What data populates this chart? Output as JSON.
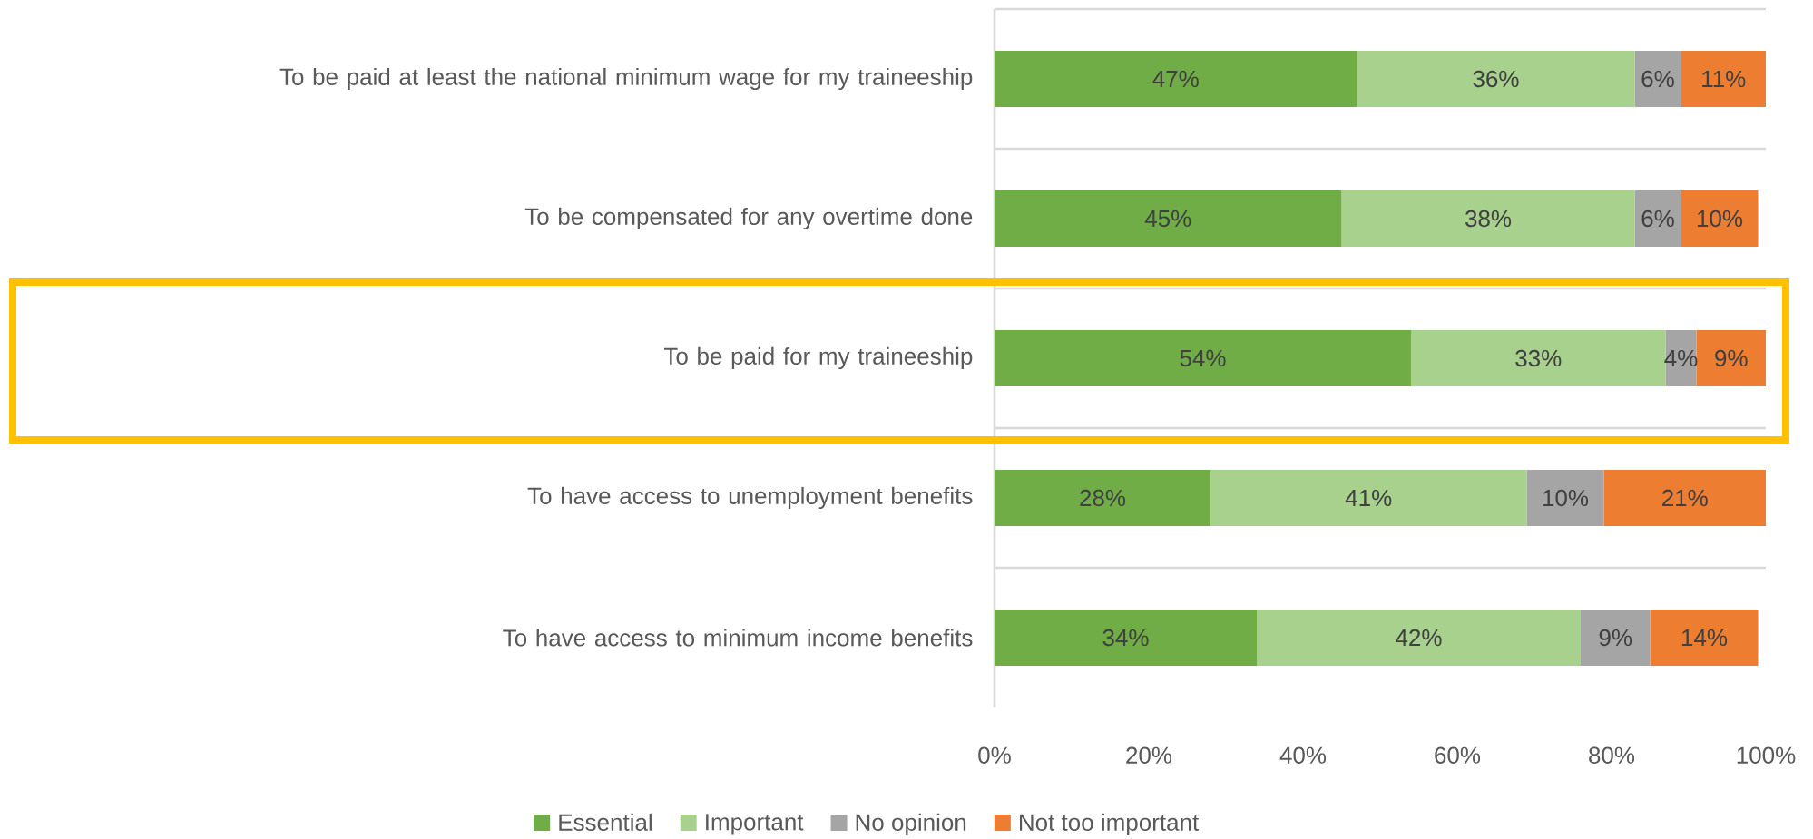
{
  "chart_data": {
    "type": "bar",
    "orientation": "horizontal",
    "stacked": true,
    "grid": "y",
    "legend": "bottom",
    "categories": [
      "To be paid at least the national minimum wage for my traineeship",
      "To be compensated for any overtime done",
      "To be paid for my traineeship",
      "To have access to unemployment benefits",
      "To have access to minimum income benefits"
    ],
    "series": [
      {
        "name": "Essential",
        "color": "#70ad47",
        "values": [
          47,
          45,
          54,
          28,
          34
        ],
        "value_labels": [
          "47%",
          "45%",
          "54%",
          "28%",
          "34%"
        ]
      },
      {
        "name": "Important",
        "color": "#a9d18e",
        "values": [
          36,
          38,
          33,
          41,
          42
        ],
        "value_labels": [
          "36%",
          "38%",
          "33%",
          "41%",
          "42%"
        ]
      },
      {
        "name": "No opinion",
        "color": "#a5a5a5",
        "values": [
          6,
          6,
          4,
          10,
          9
        ],
        "value_labels": [
          "6%",
          "6%",
          "4%",
          "10%",
          "9%"
        ]
      },
      {
        "name": "Not too important",
        "color": "#ed7d31",
        "values": [
          11,
          10,
          9,
          21,
          14
        ],
        "value_labels": [
          "11%",
          "10%",
          "9%",
          "21%",
          "14%"
        ]
      }
    ],
    "xlim": [
      0,
      100
    ],
    "xticks": [
      {
        "value": 0,
        "label": "0%"
      },
      {
        "value": 20,
        "label": "20%"
      },
      {
        "value": 40,
        "label": "40%"
      },
      {
        "value": 60,
        "label": "60%"
      },
      {
        "value": 80,
        "label": "80%"
      },
      {
        "value": 100,
        "label": "100%"
      }
    ]
  }
}
